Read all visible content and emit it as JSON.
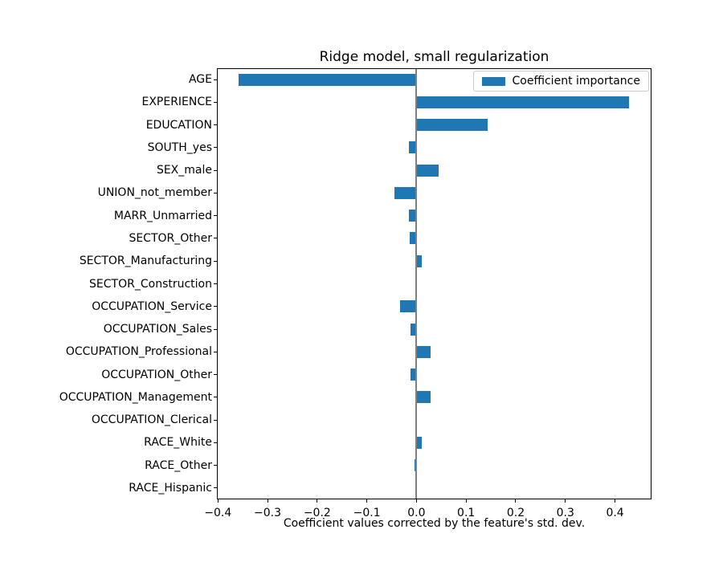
{
  "chart_data": {
    "type": "bar",
    "orientation": "horizontal",
    "title": "Ridge model, small regularization",
    "xlabel": "Coefficient values corrected by the feature's std. dev.",
    "legend": {
      "label": "Coefficient importance",
      "position": "upper right"
    },
    "bar_color": "#1f77b4",
    "zero_line_color": "#808080",
    "grid": false,
    "xlim": [
      -0.402,
      0.4735
    ],
    "xticks": {
      "values": [
        -0.4,
        -0.3,
        -0.2,
        -0.1,
        0.0,
        0.1,
        0.2,
        0.3,
        0.4
      ],
      "labels": [
        "−0.4",
        "−0.3",
        "−0.2",
        "−0.1",
        "0.0",
        "0.1",
        "0.2",
        "0.3",
        "0.4"
      ]
    },
    "categories": [
      "AGE",
      "EXPERIENCE",
      "EDUCATION",
      "SOUTH_yes",
      "SEX_male",
      "UNION_not_member",
      "MARR_Unmarried",
      "SECTOR_Other",
      "SECTOR_Manufacturing",
      "SECTOR_Construction",
      "OCCUPATION_Service",
      "OCCUPATION_Sales",
      "OCCUPATION_Professional",
      "OCCUPATION_Other",
      "OCCUPATION_Management",
      "OCCUPATION_Clerical",
      "RACE_White",
      "RACE_Other",
      "RACE_Hispanic"
    ],
    "values": [
      -0.358,
      0.428,
      0.144,
      -0.015,
      0.045,
      -0.045,
      -0.015,
      -0.014,
      0.011,
      0.0,
      -0.033,
      -0.012,
      0.028,
      -0.012,
      0.028,
      0.0,
      0.01,
      -0.004,
      0.0
    ]
  }
}
